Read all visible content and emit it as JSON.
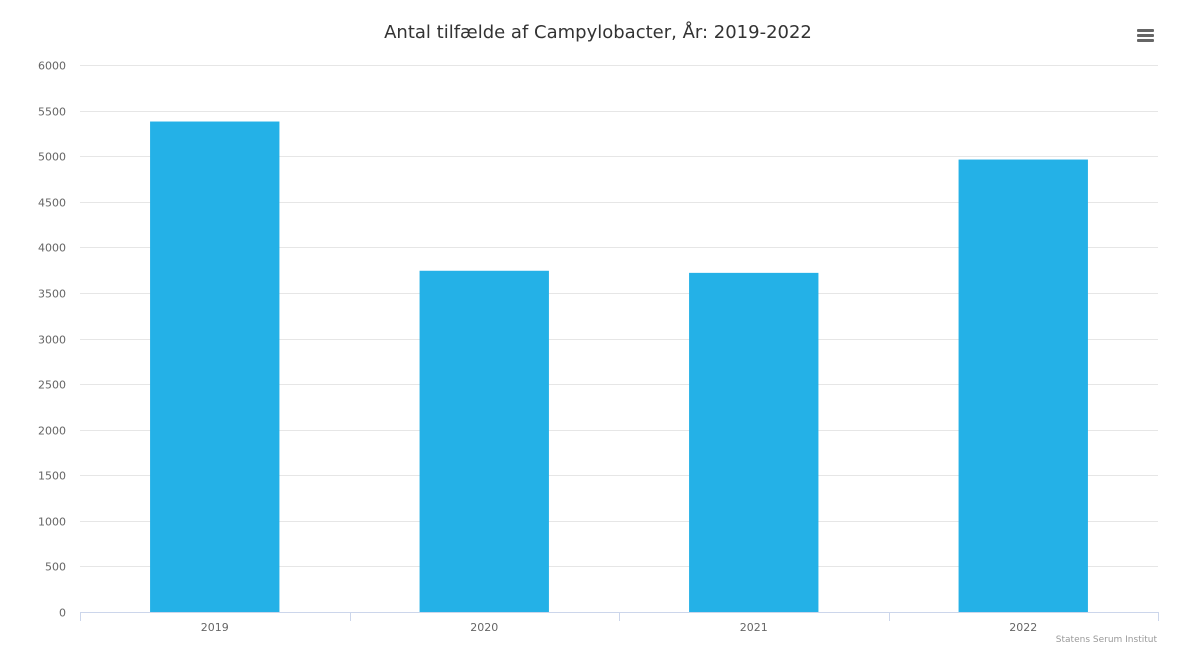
{
  "chart_data": {
    "type": "bar",
    "title": "Antal tilfælde af Campylobacter, År: 2019-2022",
    "categories": [
      "2019",
      "2020",
      "2021",
      "2022"
    ],
    "values": [
      5380,
      3743,
      3720,
      4963
    ],
    "xlabel": "",
    "ylabel": "",
    "ylim": [
      0,
      6000
    ],
    "yticks": [
      0,
      500,
      1000,
      1500,
      2000,
      2500,
      3000,
      3500,
      4000,
      4500,
      5000,
      5500,
      6000
    ],
    "grid": true,
    "legend": "none",
    "color": "#24b1e7"
  },
  "menu": {
    "icon": "hamburger-menu-icon"
  },
  "credits": "Statens Serum Institut"
}
